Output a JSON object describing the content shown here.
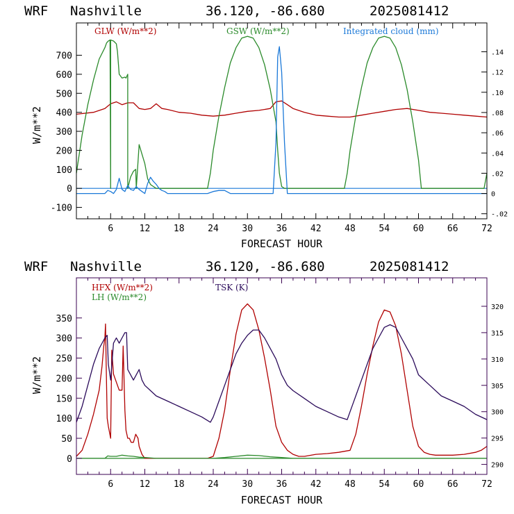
{
  "colors": {
    "glw": "#b00000",
    "gsw": "#2a8a2a",
    "cloud": "#1a78d8",
    "hfx": "#b00000",
    "lh": "#2a8a2a",
    "tsk": "#2a0a5a",
    "zero_line_top": "#1a78d8",
    "zero_line_bottom": "#2a8a2a",
    "top_frame": "#000000",
    "bottom_frame": "#3a0050"
  },
  "chart_data": [
    {
      "type": "line",
      "header": {
        "model": "WRF",
        "location": "Nashville",
        "coords": "36.120, -86.680",
        "run": "2025081412"
      },
      "xlabel": "FORECAST HOUR",
      "ylabel": "W/m**2",
      "xlim": [
        0,
        72
      ],
      "ylim": [
        -160,
        870
      ],
      "y2lim": [
        -0.025,
        0.1685
      ],
      "xticks": [
        "6",
        "12",
        "18",
        "24",
        "30",
        "36",
        "42",
        "48",
        "54",
        "60",
        "66",
        "72"
      ],
      "yticks": [
        "-100",
        "0",
        "100",
        "200",
        "300",
        "400",
        "500",
        "600",
        "700"
      ],
      "y2ticks": [
        "-.02",
        "0",
        ".02",
        ".04",
        ".06",
        ".08",
        ".10",
        ".12",
        ".14"
      ],
      "series": [
        {
          "name": "GLW (W/m**2)",
          "color_key": "glw",
          "x": [
            0,
            3,
            5,
            6,
            7,
            8,
            9,
            10,
            11,
            12,
            13,
            14,
            15,
            16,
            18,
            20,
            22,
            24,
            26,
            28,
            30,
            32,
            34,
            35,
            36,
            37,
            38,
            40,
            42,
            44,
            46,
            48,
            50,
            52,
            54,
            56,
            58,
            60,
            62,
            64,
            66,
            68,
            70,
            72
          ],
          "y": [
            390,
            400,
            420,
            445,
            455,
            440,
            450,
            450,
            420,
            415,
            420,
            445,
            420,
            415,
            400,
            395,
            385,
            380,
            385,
            395,
            405,
            410,
            420,
            455,
            460,
            440,
            420,
            400,
            385,
            380,
            375,
            375,
            385,
            395,
            405,
            415,
            420,
            410,
            400,
            395,
            390,
            385,
            380,
            375
          ]
        },
        {
          "name": "GSW (W/m**2)",
          "color_key": "gsw",
          "x": [
            0,
            1,
            2,
            3,
            4,
            5,
            5.3,
            5.6,
            5.9,
            6,
            6,
            6.5,
            7,
            7.2,
            7.5,
            8,
            8.5,
            8.7,
            9,
            9,
            9.5,
            10,
            10.4,
            10.5,
            11,
            11.5,
            12,
            12.5,
            13,
            13.5,
            14,
            16,
            18,
            20,
            22,
            23,
            23.5,
            24,
            25,
            26,
            27,
            28,
            29,
            30,
            31,
            32,
            33,
            34,
            35,
            35.3,
            35.6,
            36,
            36.5,
            47,
            47.5,
            48,
            49,
            50,
            51,
            52,
            53,
            54,
            55,
            56,
            57,
            58,
            59,
            60,
            60.5,
            71.5,
            72
          ],
          "y": [
            80,
            280,
            440,
            570,
            680,
            740,
            765,
            775,
            780,
            0,
            780,
            775,
            760,
            720,
            600,
            580,
            585,
            580,
            600,
            0,
            60,
            90,
            100,
            0,
            230,
            180,
            130,
            50,
            20,
            10,
            0,
            0,
            0,
            0,
            0,
            0,
            80,
            200,
            380,
            530,
            660,
            740,
            790,
            800,
            790,
            740,
            650,
            520,
            350,
            200,
            80,
            10,
            0,
            0,
            80,
            200,
            380,
            530,
            660,
            740,
            790,
            800,
            790,
            740,
            650,
            520,
            350,
            150,
            0,
            0,
            80
          ]
        },
        {
          "name": "Integrated cloud (mm)",
          "color_key": "cloud",
          "axis": "right",
          "x": [
            0,
            5,
            5.5,
            6,
            6.5,
            7,
            7.5,
            8,
            8.5,
            9,
            9.5,
            10,
            10.5,
            11,
            11.5,
            12,
            12.5,
            13,
            13.5,
            14,
            14.5,
            15,
            15.5,
            16,
            18,
            20,
            22,
            23,
            24,
            25,
            26,
            27,
            34.5,
            35,
            35.3,
            35.6,
            36,
            36.5,
            37,
            72
          ],
          "y": [
            0,
            0,
            0.003,
            0.002,
            0,
            0.004,
            0.015,
            0.004,
            0.002,
            0.008,
            0.004,
            0.003,
            0.007,
            0.004,
            0.002,
            0,
            0.01,
            0.016,
            0.012,
            0.009,
            0.005,
            0.003,
            0.002,
            0,
            0,
            0,
            0,
            0,
            0.002,
            0.003,
            0.003,
            0,
            0,
            0.05,
            0.135,
            0.145,
            0.12,
            0.05,
            0,
            0
          ]
        }
      ],
      "hline": 0
    },
    {
      "type": "line",
      "header": {
        "model": "WRF",
        "location": "Nashville",
        "coords": "36.120, -86.680",
        "run": "2025081412"
      },
      "xlabel": "FORECAST HOUR",
      "ylabel": "W/m**2",
      "xlim": [
        0,
        72
      ],
      "ylim": [
        -40,
        450
      ],
      "y2lim": [
        288.1,
        325.4
      ],
      "xticks": [
        "6",
        "12",
        "18",
        "24",
        "30",
        "36",
        "42",
        "48",
        "54",
        "60",
        "66",
        "72"
      ],
      "yticks": [
        "0",
        "50",
        "100",
        "150",
        "200",
        "250",
        "300",
        "350"
      ],
      "y2ticks": [
        "290",
        "295",
        "300",
        "305",
        "310",
        "315",
        "320"
      ],
      "series": [
        {
          "name": "HFX (W/m**2)",
          "color_key": "hfx",
          "x": [
            0,
            1,
            2,
            3,
            4,
            4.5,
            4.8,
            5,
            5.1,
            5.2,
            5.4,
            5.6,
            6,
            6.2,
            6.5,
            7,
            7.5,
            8,
            8.2,
            8.5,
            8.7,
            9,
            9.3,
            9.6,
            10,
            10.4,
            10.8,
            11,
            11.5,
            12,
            13,
            14,
            16,
            18,
            20,
            22,
            23,
            24,
            25,
            26,
            27,
            28,
            29,
            30,
            31,
            32,
            33,
            34,
            35,
            36,
            37,
            38,
            39,
            40,
            42,
            44,
            46,
            48,
            49,
            50,
            51,
            52,
            53,
            54,
            55,
            56,
            57,
            58,
            59,
            60,
            61,
            62,
            63,
            64,
            66,
            68,
            70,
            71,
            72
          ],
          "y": [
            5,
            20,
            60,
            110,
            170,
            230,
            280,
            300,
            335,
            250,
            100,
            80,
            50,
            270,
            210,
            190,
            170,
            170,
            280,
            120,
            70,
            50,
            50,
            40,
            40,
            60,
            50,
            30,
            10,
            0,
            0,
            0,
            0,
            0,
            0,
            0,
            0,
            5,
            50,
            120,
            220,
            310,
            370,
            385,
            370,
            320,
            250,
            170,
            80,
            40,
            20,
            10,
            5,
            5,
            10,
            12,
            15,
            20,
            60,
            130,
            210,
            280,
            340,
            370,
            365,
            330,
            260,
            170,
            80,
            30,
            15,
            10,
            8,
            8,
            8,
            10,
            15,
            20,
            30
          ]
        },
        {
          "name": "LH  (W/m**2)",
          "color_key": "lh",
          "x": [
            0,
            4,
            5,
            5.5,
            6,
            7,
            8,
            9,
            10,
            11,
            12,
            14,
            16,
            18,
            20,
            22,
            24,
            26,
            28,
            30,
            32,
            34,
            36,
            38,
            40,
            42,
            46,
            48,
            52,
            56,
            60,
            64,
            68,
            72
          ],
          "y": [
            0,
            0,
            0,
            6,
            5,
            5,
            8,
            6,
            5,
            3,
            2,
            0,
            0,
            0,
            0,
            0,
            0,
            2,
            5,
            8,
            7,
            4,
            2,
            0,
            0,
            0,
            0,
            0,
            0,
            0,
            0,
            0,
            0,
            0
          ]
        },
        {
          "name": "TSK (K)",
          "color_key": "tsk",
          "axis": "right",
          "x": [
            0,
            1,
            2,
            3,
            4,
            5,
            5.4,
            5.6,
            6,
            6.5,
            7,
            7.5,
            8,
            8.5,
            8.8,
            9,
            9.5,
            10,
            10.5,
            11,
            11.5,
            12,
            13,
            14,
            16,
            18,
            20,
            22,
            23.5,
            24,
            25,
            26,
            27,
            28,
            29,
            30,
            31,
            32,
            33,
            34,
            35,
            36,
            37,
            38,
            40,
            42,
            44,
            46,
            47.5,
            48,
            49,
            50,
            51,
            52,
            53,
            54,
            55,
            56,
            57,
            58,
            59,
            60,
            62,
            64,
            66,
            68,
            70,
            72
          ],
          "y": [
            298,
            301,
            305,
            309,
            312,
            314,
            314.5,
            309,
            306,
            313,
            314,
            313,
            314,
            315,
            315,
            308,
            307,
            306,
            307,
            308,
            306,
            305,
            304,
            303,
            302,
            301,
            300,
            299,
            298,
            299,
            302,
            305,
            308,
            311,
            313,
            314.5,
            315.5,
            315.5,
            314,
            312,
            310,
            307,
            305,
            304,
            302.5,
            301,
            300,
            299,
            298.5,
            300,
            303,
            306,
            309,
            312,
            314,
            316,
            316.5,
            316,
            314,
            312,
            310,
            307,
            305,
            303,
            302,
            301,
            299.5,
            298.5
          ]
        }
      ],
      "hline": 0
    }
  ]
}
